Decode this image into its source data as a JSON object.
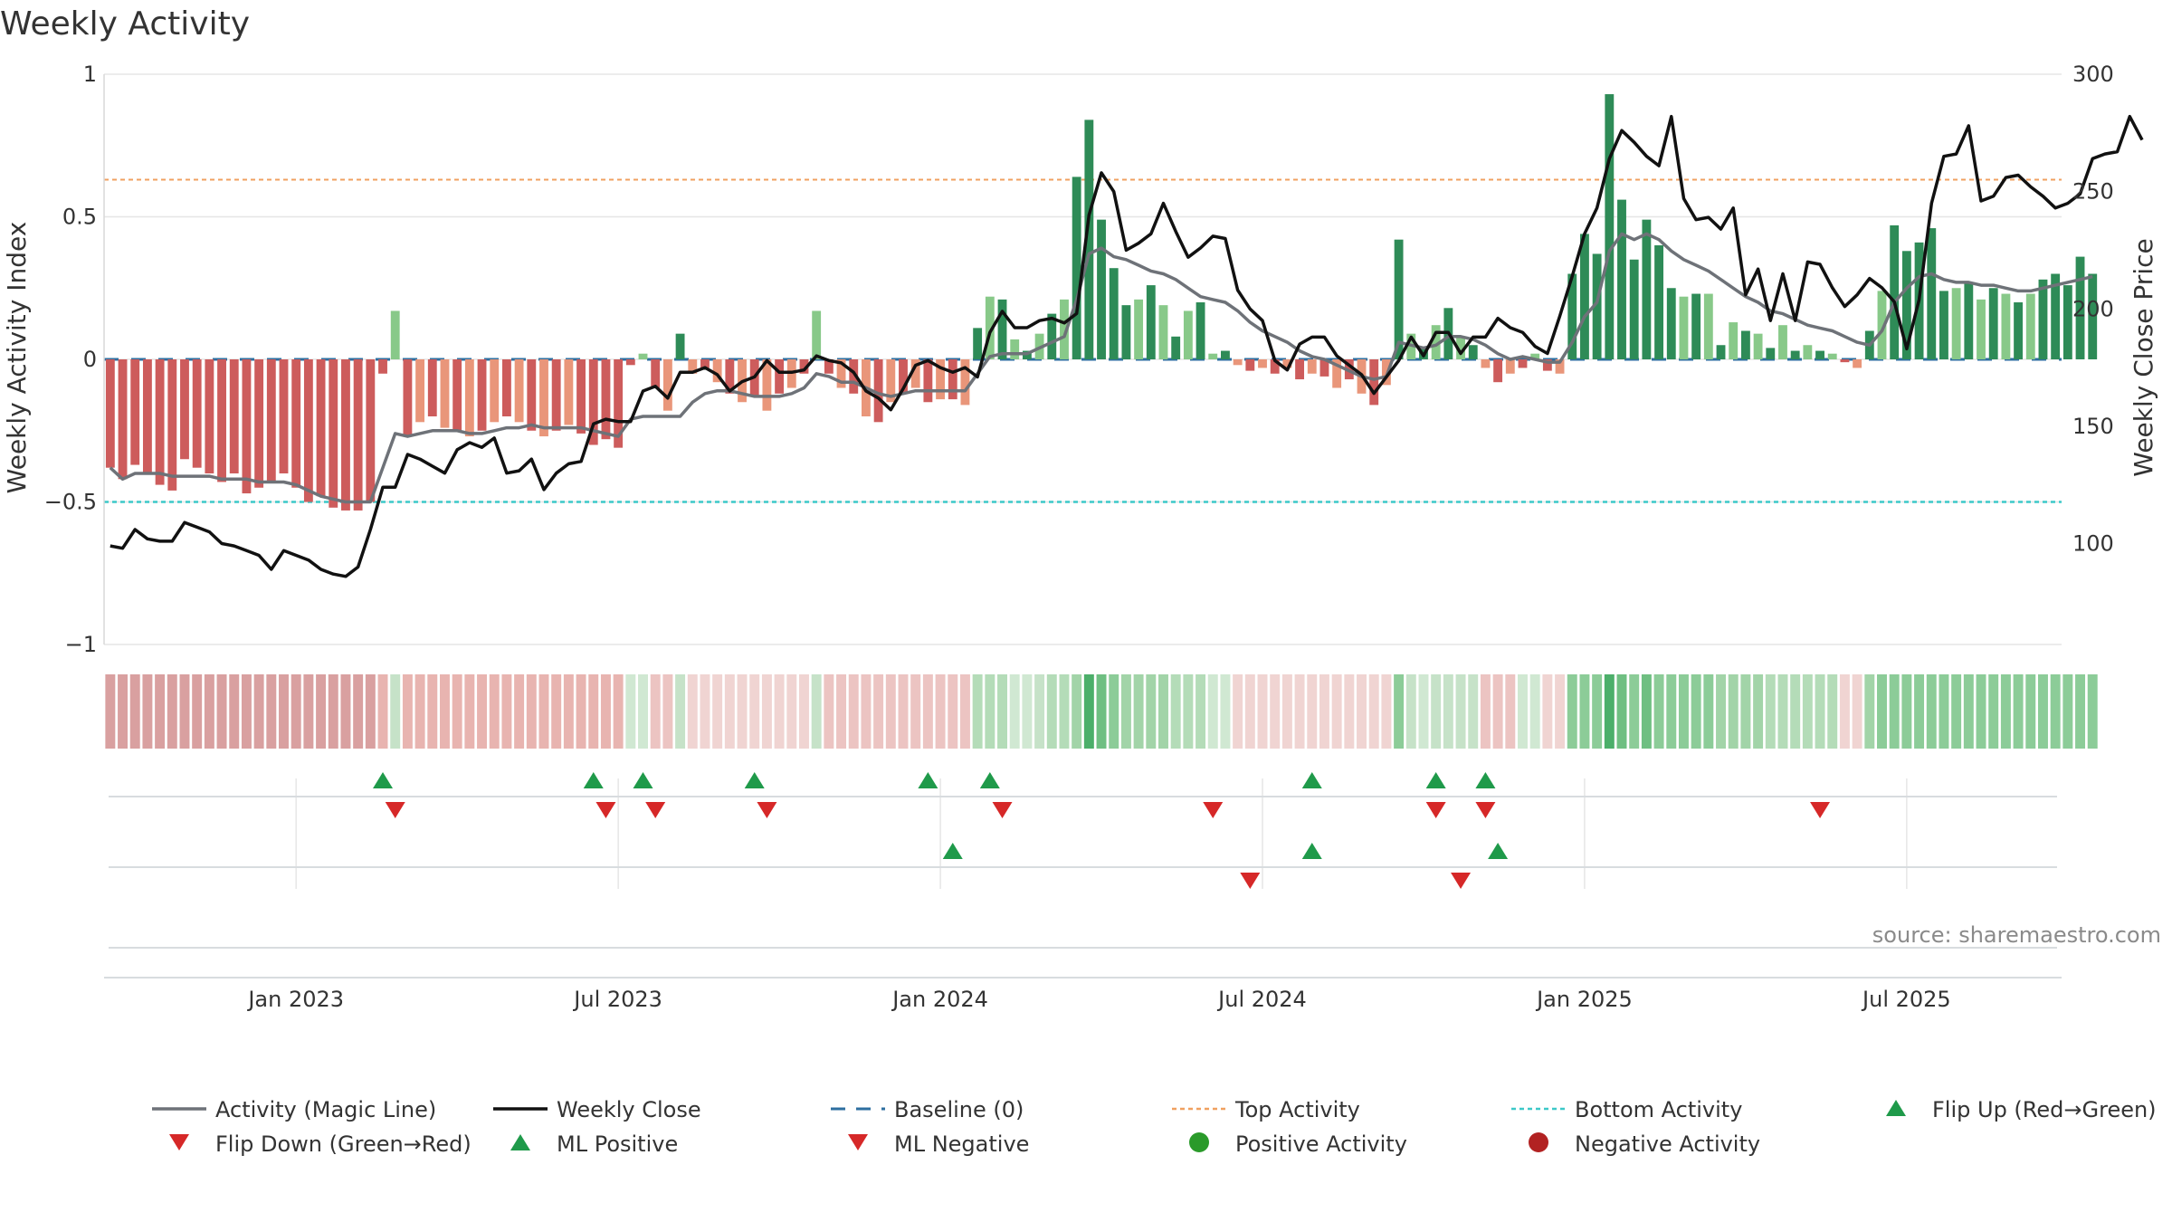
{
  "colors": {
    "grid": "#e6e6e6",
    "magic": "#6e7278",
    "close": "#111111",
    "baseline": "#2e6fa0",
    "top": "#f0a060",
    "bottom": "#3cc8c8",
    "up": "#1f9a4a",
    "down": "#d62828",
    "posDot": "#2a9a2a",
    "negDot": "#b22222",
    "posStrong": "#2e8b57",
    "posLight": "#88c989",
    "negStrong": "#cd5c5c",
    "negLight": "#e9967a"
  },
  "chart_data": {
    "type": "bar+line",
    "title": "Weekly Activity",
    "ylabel_left": "Weekly Activity Index",
    "ylabel_right": "Weekly Close Price",
    "ylim_left": [
      -1,
      1
    ],
    "ylim_right": [
      57,
      300
    ],
    "left_ticks": [
      "1",
      "0.5",
      "0",
      "−0.5",
      "−1"
    ],
    "left_tick_values": [
      1,
      0.5,
      0,
      -0.5,
      -1
    ],
    "right_ticks": [
      "300",
      "250",
      "200",
      "150",
      "100"
    ],
    "right_tick_values": [
      300,
      250,
      200,
      150,
      100
    ],
    "x_labels": [
      "Jan 2023",
      "Jul 2023",
      "Jan 2024",
      "Jul 2024",
      "Jan 2025",
      "Jul 2025"
    ],
    "x_label_weeks": [
      15,
      41,
      67,
      93,
      119,
      145
    ],
    "weeks": 158,
    "top_activity": 0.63,
    "bottom_activity": -0.5,
    "baseline": 0,
    "activity": [
      -0.38,
      -0.42,
      -0.37,
      -0.4,
      -0.44,
      -0.46,
      -0.35,
      -0.38,
      -0.4,
      -0.43,
      -0.4,
      -0.47,
      -0.45,
      -0.43,
      -0.4,
      -0.45,
      -0.5,
      -0.48,
      -0.52,
      -0.53,
      -0.53,
      -0.5,
      -0.05,
      0.17,
      -0.27,
      -0.22,
      -0.2,
      -0.24,
      -0.25,
      -0.27,
      -0.25,
      -0.22,
      -0.2,
      -0.22,
      -0.25,
      -0.27,
      -0.25,
      -0.23,
      -0.26,
      -0.3,
      -0.28,
      -0.31,
      -0.02,
      0.02,
      -0.1,
      -0.18,
      0.09,
      -0.05,
      -0.03,
      -0.08,
      -0.12,
      -0.15,
      -0.13,
      -0.18,
      -0.12,
      -0.1,
      -0.05,
      0.17,
      -0.05,
      -0.1,
      -0.12,
      -0.2,
      -0.22,
      -0.15,
      -0.12,
      -0.1,
      -0.15,
      -0.14,
      -0.14,
      -0.16,
      0.11,
      0.22,
      0.21,
      0.07,
      0.03,
      0.09,
      0.16,
      0.21,
      0.64,
      0.84,
      0.49,
      0.32,
      0.19,
      0.21,
      0.26,
      0.19,
      0.08,
      0.17,
      0.2,
      0.02,
      0.03,
      -0.02,
      -0.04,
      -0.03,
      -0.05,
      -0.03,
      -0.07,
      -0.05,
      -0.06,
      -0.1,
      -0.07,
      -0.12,
      -0.16,
      -0.09,
      0.42,
      0.09,
      0.04,
      0.12,
      0.18,
      0.08,
      0.05,
      -0.03,
      -0.08,
      -0.05,
      -0.03,
      0.02,
      -0.04,
      -0.05,
      0.3,
      0.44,
      0.37,
      0.93,
      0.56,
      0.35,
      0.49,
      0.4,
      0.25,
      0.22,
      0.23,
      0.23,
      0.05,
      0.13,
      0.1,
      0.09,
      0.04,
      0.12,
      0.03,
      0.05,
      0.03,
      0.02,
      -0.01,
      -0.03,
      0.1,
      0.24,
      0.47,
      0.38,
      0.41,
      0.46,
      0.24,
      0.25,
      0.27,
      0.21,
      0.25,
      0.23,
      0.2,
      0.23,
      0.28,
      0.3,
      0.26,
      0.36,
      0.3
    ],
    "magic_line": [
      -0.38,
      -0.42,
      -0.4,
      -0.4,
      -0.4,
      -0.41,
      -0.41,
      -0.41,
      -0.41,
      -0.42,
      -0.42,
      -0.42,
      -0.43,
      -0.43,
      -0.43,
      -0.44,
      -0.46,
      -0.48,
      -0.49,
      -0.5,
      -0.5,
      -0.5,
      -0.38,
      -0.26,
      -0.27,
      -0.26,
      -0.25,
      -0.25,
      -0.25,
      -0.26,
      -0.26,
      -0.25,
      -0.24,
      -0.24,
      -0.23,
      -0.24,
      -0.24,
      -0.24,
      -0.24,
      -0.25,
      -0.26,
      -0.27,
      -0.21,
      -0.2,
      -0.2,
      -0.2,
      -0.2,
      -0.15,
      -0.12,
      -0.11,
      -0.11,
      -0.12,
      -0.13,
      -0.13,
      -0.13,
      -0.12,
      -0.1,
      -0.05,
      -0.06,
      -0.08,
      -0.08,
      -0.1,
      -0.12,
      -0.13,
      -0.12,
      -0.11,
      -0.11,
      -0.11,
      -0.11,
      -0.11,
      -0.05,
      0.01,
      0.02,
      0.02,
      0.02,
      0.04,
      0.06,
      0.08,
      0.21,
      0.37,
      0.39,
      0.36,
      0.35,
      0.33,
      0.31,
      0.3,
      0.28,
      0.25,
      0.22,
      0.21,
      0.2,
      0.17,
      0.13,
      0.1,
      0.08,
      0.06,
      0.03,
      0.01,
      0,
      -0.02,
      -0.04,
      -0.06,
      -0.07,
      -0.06,
      0.06,
      0.05,
      0.04,
      0.05,
      0.08,
      0.08,
      0.07,
      0.05,
      0.02,
      0,
      0.01,
      0,
      -0.01,
      -0.01,
      0.06,
      0.15,
      0.2,
      0.38,
      0.44,
      0.42,
      0.44,
      0.42,
      0.38,
      0.35,
      0.33,
      0.31,
      0.28,
      0.25,
      0.22,
      0.2,
      0.17,
      0.16,
      0.14,
      0.12,
      0.11,
      0.1,
      0.08,
      0.06,
      0.05,
      0.1,
      0.2,
      0.25,
      0.29,
      0.3,
      0.28,
      0.27,
      0.27,
      0.26,
      0.26,
      0.25,
      0.24,
      0.24,
      0.25,
      0.26,
      0.27,
      0.28,
      0.29
    ],
    "weekly_close": [
      99,
      98,
      106,
      102,
      101,
      101,
      109,
      107,
      105,
      100,
      99,
      97,
      95,
      89,
      97,
      95,
      93,
      89,
      87,
      86,
      90,
      106,
      124,
      124,
      138,
      136,
      133,
      130,
      140,
      143,
      141,
      145,
      130,
      131,
      136,
      123,
      130,
      134,
      135,
      151,
      153,
      152,
      152,
      165,
      167,
      162,
      173,
      173,
      175,
      172,
      165,
      169,
      171,
      178,
      173,
      173,
      174,
      180,
      178,
      177,
      173,
      165,
      162,
      157,
      166,
      176,
      178,
      175,
      173,
      175,
      171,
      190,
      199,
      192,
      192,
      195,
      196,
      194,
      198,
      240,
      258,
      250,
      225,
      228,
      232,
      245,
      233,
      222,
      226,
      231,
      230,
      208,
      200,
      195,
      178,
      174,
      185,
      188,
      188,
      180,
      176,
      172,
      164,
      171,
      178,
      188,
      180,
      190,
      190,
      181,
      188,
      188,
      196,
      192,
      190,
      184,
      181,
      197,
      214,
      232,
      243,
      264,
      276,
      271,
      265,
      261,
      282,
      247,
      238,
      239,
      234,
      243,
      206,
      217,
      195,
      215,
      195,
      220,
      219,
      209,
      201,
      206,
      213,
      209,
      203,
      183,
      204,
      245,
      265,
      266,
      278,
      246,
      248,
      256,
      257,
      252,
      248,
      243,
      245,
      249,
      264,
      266,
      267,
      282,
      272
    ]
  },
  "strip_colors": [
    "#d9a0a0",
    "#d9a0a0",
    "#d9a0a0",
    "#d9a0a0",
    "#d9a0a0",
    "#d9a0a0",
    "#d9a0a0",
    "#d9a0a0",
    "#d9a0a0",
    "#d9a0a0",
    "#d9a0a0",
    "#d9a0a0",
    "#d9a0a0",
    "#d9a0a0",
    "#d9a0a0",
    "#d9a0a0",
    "#d9a0a0",
    "#d9a0a0",
    "#d9a0a0",
    "#d9a0a0",
    "#d9a0a0",
    "#d9a0a0",
    "#e8b4b0",
    "#c6e2c8",
    "#e8b4b0",
    "#e8b4b0",
    "#e8b4b0",
    "#e8b4b0",
    "#e8b4b0",
    "#e8b4b0",
    "#e8b4b0",
    "#e8b4b0",
    "#e8b4b0",
    "#e8b4b0",
    "#e8b4b0",
    "#e8b4b0",
    "#e8b4b0",
    "#e8b4b0",
    "#e8b4b0",
    "#e8b4b0",
    "#e8b4b0",
    "#e8b4b0",
    "#d0e8d2",
    "#d0e8d2",
    "#ecc4c2",
    "#ecc4c2",
    "#c6e2c8",
    "#f0d4d2",
    "#f0d4d2",
    "#f0d4d2",
    "#f0d4d2",
    "#f0d4d2",
    "#f0d4d2",
    "#f0d4d2",
    "#f0d4d2",
    "#f0d4d2",
    "#f0d4d2",
    "#c6e2c8",
    "#ecc4c2",
    "#ecc4c2",
    "#ecc4c2",
    "#ecc4c2",
    "#ecc4c2",
    "#ecc4c2",
    "#ecc4c2",
    "#ecc4c2",
    "#ecc4c2",
    "#ecc4c2",
    "#ecc4c2",
    "#ecc4c2",
    "#b4dcb8",
    "#b4dcb8",
    "#b4dcb8",
    "#d0e8d2",
    "#d0e8d2",
    "#c6e2c8",
    "#b4dcb8",
    "#b4dcb8",
    "#a2d4a8",
    "#4caf6a",
    "#6fbf82",
    "#8ccc98",
    "#a2d4a8",
    "#a2d4a8",
    "#a2d4a8",
    "#a2d4a8",
    "#b4dcb8",
    "#b4dcb8",
    "#b4dcb8",
    "#d0e8d2",
    "#d0e8d2",
    "#f0d4d2",
    "#f0d4d2",
    "#f0d4d2",
    "#f0d4d2",
    "#f0d4d2",
    "#f0d4d2",
    "#f0d4d2",
    "#f0d4d2",
    "#f0d4d2",
    "#f0d4d2",
    "#f0d4d2",
    "#f0d4d2",
    "#f0d4d2",
    "#8ccc98",
    "#c6e2c8",
    "#d0e8d2",
    "#c6e2c8",
    "#c6e2c8",
    "#c6e2c8",
    "#c6e2c8",
    "#ecc4c2",
    "#ecc4c2",
    "#ecc4c2",
    "#d0e8d2",
    "#d0e8d2",
    "#f0d4d2",
    "#f0d4d2",
    "#8ccc98",
    "#8ccc98",
    "#8ccc98",
    "#4caf6a",
    "#6fbf82",
    "#8ccc98",
    "#6fbf82",
    "#8ccc98",
    "#8ccc98",
    "#8ccc98",
    "#8ccc98",
    "#8ccc98",
    "#a2d4a8",
    "#a2d4a8",
    "#a2d4a8",
    "#a2d4a8",
    "#b4dcb8",
    "#b4dcb8",
    "#b4dcb8",
    "#b4dcb8",
    "#b4dcb8",
    "#b4dcb8",
    "#f0d4d2",
    "#f0d4d2",
    "#a2d4a8",
    "#8ccc98",
    "#8ccc98",
    "#8ccc98",
    "#8ccc98",
    "#8ccc98",
    "#8ccc98",
    "#8ccc98",
    "#8ccc98",
    "#8ccc98",
    "#8ccc98",
    "#8ccc98",
    "#8ccc98",
    "#8ccc98",
    "#8ccc98",
    "#8ccc98",
    "#8ccc98",
    "#8ccc98",
    "#8ccc98"
  ],
  "flip_up_weeks": [
    22,
    39,
    43,
    52,
    66,
    71,
    97,
    107,
    111
  ],
  "flip_down_weeks": [
    23,
    40,
    44,
    53,
    72,
    89,
    107,
    111,
    138
  ],
  "ml_positive_weeks": [
    68,
    97,
    112
  ],
  "ml_negative_weeks": [
    92,
    109
  ],
  "source": "source: sharemaestro.com",
  "legend": [
    {
      "label": "Activity (Magic Line)",
      "kind": "line-grey"
    },
    {
      "label": "Weekly Close",
      "kind": "line-black"
    },
    {
      "label": "Baseline (0)",
      "kind": "line-dashed"
    },
    {
      "label": "Top Activity",
      "kind": "line-dotted-orange"
    },
    {
      "label": "Bottom Activity",
      "kind": "line-dotted-teal"
    },
    {
      "label": "Flip Up (Red→Green)",
      "kind": "tri-up"
    },
    {
      "label": "Flip Down (Green→Red)",
      "kind": "tri-down"
    },
    {
      "label": "ML Positive",
      "kind": "tri-up"
    },
    {
      "label": "ML Negative",
      "kind": "tri-down"
    },
    {
      "label": "Positive Activity",
      "kind": "dot-green"
    },
    {
      "label": "Negative Activity",
      "kind": "dot-red"
    }
  ]
}
